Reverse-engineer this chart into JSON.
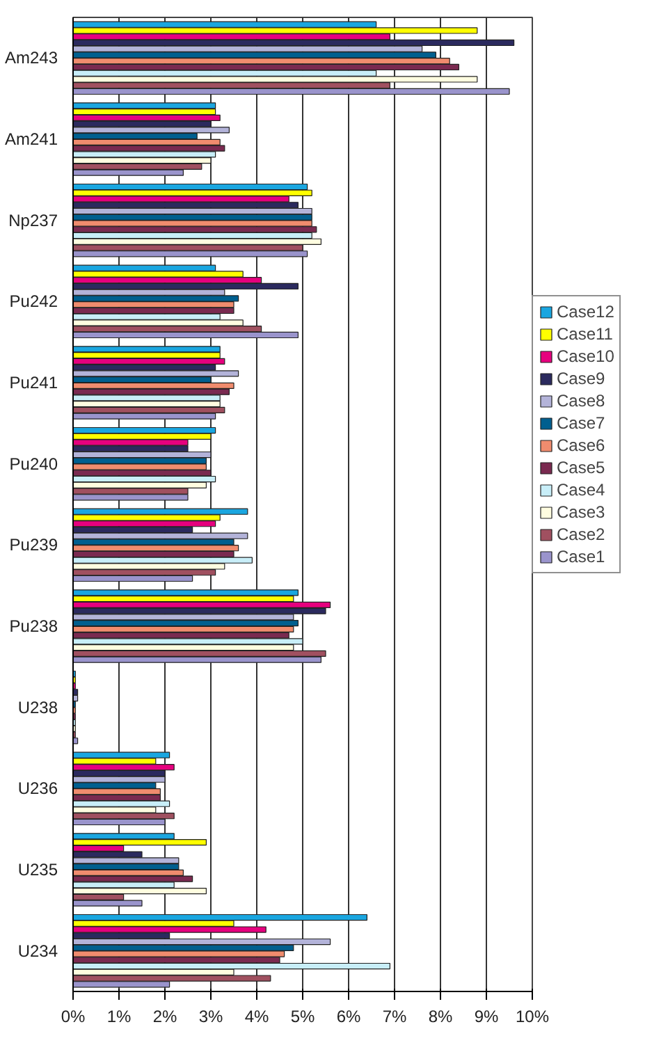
{
  "chart_data": {
    "type": "bar",
    "orientation": "horizontal",
    "categories": [
      "Am243",
      "Am241",
      "Np237",
      "Pu242",
      "Pu241",
      "Pu240",
      "Pu239",
      "Pu238",
      "U238",
      "U236",
      "U235",
      "U234"
    ],
    "series": [
      {
        "name": "Case12",
        "color": "#1aa6e0",
        "values": [
          6.6,
          3.1,
          5.1,
          3.1,
          3.2,
          3.1,
          3.8,
          4.9,
          0.05,
          2.1,
          2.2,
          6.4
        ]
      },
      {
        "name": "Case11",
        "color": "#ffff00",
        "values": [
          8.8,
          3.1,
          5.2,
          3.7,
          3.2,
          3.0,
          3.2,
          4.8,
          0.05,
          1.8,
          2.9,
          3.5
        ]
      },
      {
        "name": "Case10",
        "color": "#e6007e",
        "values": [
          6.9,
          3.2,
          4.7,
          4.1,
          3.3,
          2.5,
          3.1,
          5.6,
          0.05,
          2.2,
          1.1,
          4.2
        ]
      },
      {
        "name": "Case9",
        "color": "#2b2a5e",
        "values": [
          9.6,
          3.0,
          4.9,
          4.9,
          3.1,
          2.5,
          2.6,
          5.5,
          0.1,
          2.0,
          1.5,
          2.1
        ]
      },
      {
        "name": "Case8",
        "color": "#b3b3d9",
        "values": [
          7.6,
          3.4,
          5.2,
          3.3,
          3.6,
          3.0,
          3.8,
          4.8,
          0.1,
          2.0,
          2.3,
          5.6
        ]
      },
      {
        "name": "Case7",
        "color": "#005f8f",
        "values": [
          7.9,
          2.7,
          5.2,
          3.6,
          3.0,
          2.9,
          3.5,
          4.9,
          0.05,
          1.8,
          2.3,
          4.8
        ]
      },
      {
        "name": "Case6",
        "color": "#f08c6e",
        "values": [
          8.2,
          3.2,
          5.2,
          3.5,
          3.5,
          2.9,
          3.6,
          4.8,
          0.05,
          1.9,
          2.4,
          4.6
        ]
      },
      {
        "name": "Case5",
        "color": "#7a2a50",
        "values": [
          8.4,
          3.3,
          5.3,
          3.5,
          3.4,
          3.0,
          3.5,
          4.7,
          0.05,
          1.9,
          2.6,
          4.5
        ]
      },
      {
        "name": "Case4",
        "color": "#c8eef8",
        "values": [
          6.6,
          3.1,
          5.2,
          3.2,
          3.2,
          3.1,
          3.9,
          5.0,
          0.05,
          2.1,
          2.2,
          6.9
        ]
      },
      {
        "name": "Case3",
        "color": "#fffde0",
        "values": [
          8.8,
          3.0,
          5.4,
          3.7,
          3.2,
          2.9,
          3.3,
          4.8,
          0.05,
          1.8,
          2.9,
          3.5
        ]
      },
      {
        "name": "Case2",
        "color": "#a05060",
        "values": [
          6.9,
          2.8,
          5.0,
          4.1,
          3.3,
          2.5,
          3.1,
          5.5,
          0.05,
          2.2,
          1.1,
          4.3
        ]
      },
      {
        "name": "Case1",
        "color": "#9a94cc",
        "values": [
          9.5,
          2.4,
          5.1,
          4.9,
          3.1,
          2.5,
          2.6,
          5.4,
          0.1,
          2.0,
          1.5,
          2.1
        ]
      }
    ],
    "xlim": [
      0,
      10
    ],
    "xticks": [
      {
        "value": 0,
        "label": "0%"
      },
      {
        "value": 1,
        "label": "1%"
      },
      {
        "value": 2,
        "label": "2%"
      },
      {
        "value": 3,
        "label": "3%"
      },
      {
        "value": 4,
        "label": "4%"
      },
      {
        "value": 5,
        "label": "5%"
      },
      {
        "value": 6,
        "label": "6%"
      },
      {
        "value": 7,
        "label": "7%"
      },
      {
        "value": 8,
        "label": "8%"
      },
      {
        "value": 9,
        "label": "9%"
      },
      {
        "value": 10,
        "label": "10%"
      }
    ],
    "grid": "x",
    "legend": "right"
  }
}
